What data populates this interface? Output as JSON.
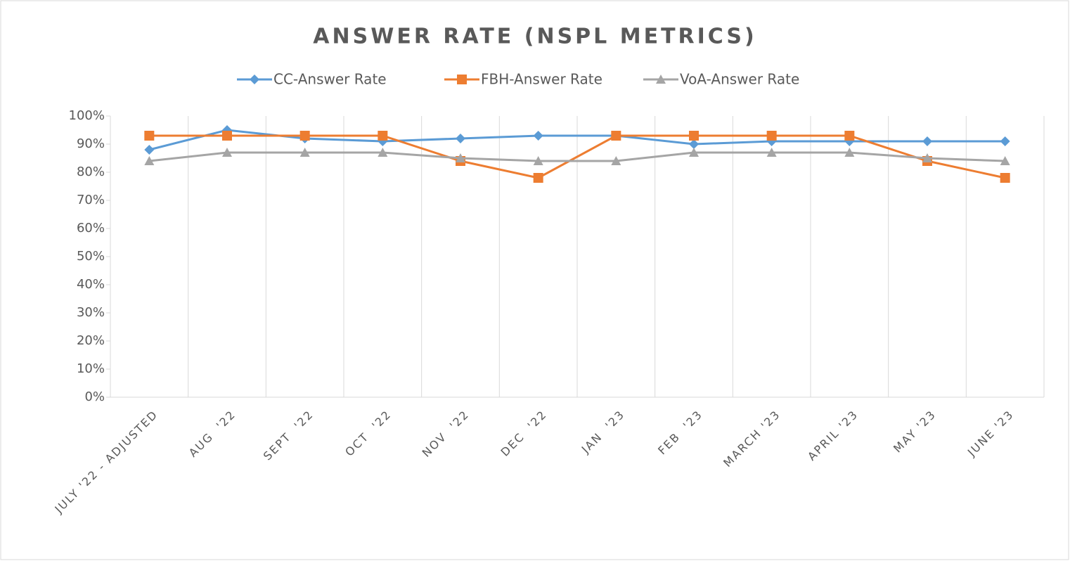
{
  "chart_data": {
    "type": "line",
    "title": "ANSWER RATE (NSPL METRICS)",
    "categories": [
      "JULY '22 - ADJUSTED",
      "AUG  '22",
      "SEPT  '22",
      "OCT  '22",
      "NOV  '22",
      "DEC  '22",
      "JAN  '23",
      "FEB  '23",
      "MARCH '23",
      "APRIL '23",
      "MAY '23",
      "JUNE '23"
    ],
    "series": [
      {
        "name": "CC-Answer Rate",
        "color": "#5b9bd5",
        "marker": "diamond",
        "values": [
          88,
          95,
          92,
          91,
          92,
          93,
          93,
          90,
          91,
          91,
          91,
          91
        ]
      },
      {
        "name": "FBH-Answer Rate",
        "color": "#ed7d31",
        "marker": "square",
        "values": [
          93,
          93,
          93,
          93,
          84,
          78,
          93,
          93,
          93,
          93,
          84,
          78
        ]
      },
      {
        "name": "VoA-Answer Rate",
        "color": "#a5a5a5",
        "marker": "triangle",
        "values": [
          84,
          87,
          87,
          87,
          85,
          84,
          84,
          87,
          87,
          87,
          85,
          84
        ]
      }
    ],
    "ylim": [
      0,
      100
    ],
    "yticks": [
      {
        "value": 0,
        "label": "0%"
      },
      {
        "value": 10,
        "label": "10%"
      },
      {
        "value": 20,
        "label": "20%"
      },
      {
        "value": 30,
        "label": "30%"
      },
      {
        "value": 40,
        "label": "40%"
      },
      {
        "value": 50,
        "label": "50%"
      },
      {
        "value": 60,
        "label": "60%"
      },
      {
        "value": 70,
        "label": "70%"
      },
      {
        "value": 80,
        "label": "80%"
      },
      {
        "value": 90,
        "label": "90%"
      },
      {
        "value": 100,
        "label": "100%"
      }
    ],
    "legend": "top"
  }
}
